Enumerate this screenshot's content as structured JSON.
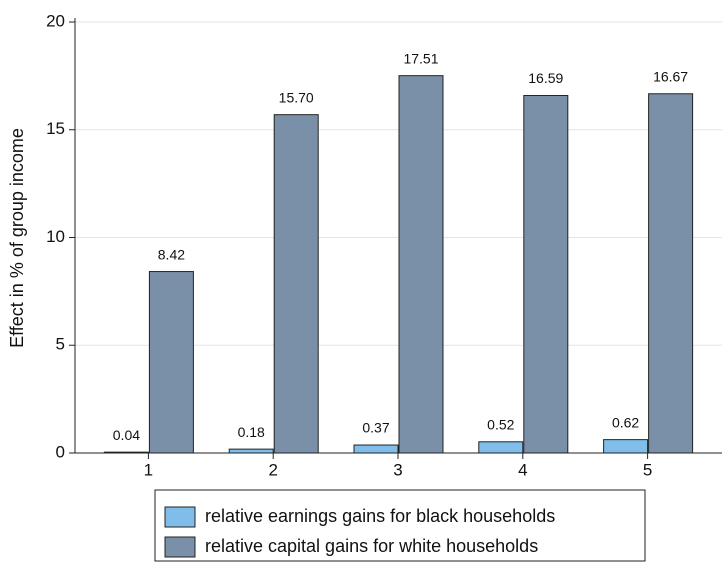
{
  "chart_data": {
    "type": "bar",
    "ylabel": "Effect in % of group income",
    "categories": [
      "1",
      "2",
      "3",
      "4",
      "5"
    ],
    "series": [
      {
        "name": "relative earnings gains for black households",
        "color": "#80bdea",
        "values": [
          0.04,
          0.18,
          0.37,
          0.52,
          0.62
        ],
        "value_labels": [
          "0.04",
          "0.18",
          "0.37",
          "0.52",
          "0.62"
        ]
      },
      {
        "name": "relative capital gains for white households",
        "color": "#7a90a8",
        "values": [
          8.42,
          15.7,
          17.51,
          16.59,
          16.67
        ],
        "value_labels": [
          "8.42",
          "15.70",
          "17.51",
          "16.59",
          "16.67"
        ]
      }
    ],
    "ylim": [
      0,
      20
    ],
    "yticks": [
      0,
      5,
      10,
      15,
      20
    ],
    "grid": true
  }
}
